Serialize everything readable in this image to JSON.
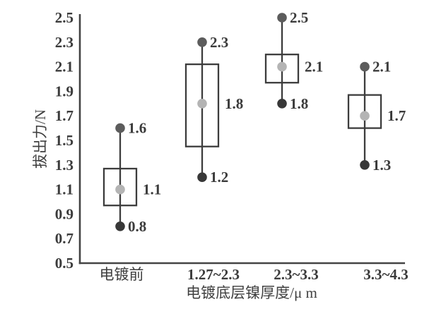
{
  "chart_data": {
    "type": "box",
    "title": "",
    "xlabel": "电镀底层镍厚度/μ m",
    "ylabel": "拔出力/N",
    "ylim": [
      0.5,
      2.5
    ],
    "ytick_step": 0.2,
    "ytick_labels": [
      "2.5",
      "2.3",
      "2.1",
      "1.9",
      "1.7",
      "1.5",
      "1.3",
      "1.1",
      "0.9",
      "0.7",
      "0.5"
    ],
    "categories": [
      "电镀前",
      "1.27~2.3",
      "2.3~3.3",
      "3.3~4.3"
    ],
    "grid": false,
    "legend": "none",
    "series": [
      {
        "category": "电镀前",
        "max": 1.6,
        "mean": 1.1,
        "min": 0.8,
        "box_top": 1.27,
        "box_bottom": 0.97,
        "max_label": "1.6",
        "mean_label": "1.1",
        "min_label": "0.8"
      },
      {
        "category": "1.27~2.3",
        "max": 2.3,
        "mean": 1.8,
        "min": 1.2,
        "box_top": 2.12,
        "box_bottom": 1.45,
        "max_label": "2.3",
        "mean_label": "1.8",
        "min_label": "1.2"
      },
      {
        "category": "2.3~3.3",
        "max": 2.5,
        "mean": 2.1,
        "min": 1.8,
        "box_top": 2.2,
        "box_bottom": 1.97,
        "max_label": "2.5",
        "mean_label": "2.1",
        "min_label": "1.8"
      },
      {
        "category": "3.3~4.3",
        "max": 2.1,
        "mean": 1.7,
        "min": 1.3,
        "box_top": 1.87,
        "box_bottom": 1.6,
        "max_label": "2.1",
        "mean_label": "1.7",
        "min_label": "1.3"
      }
    ],
    "colors": {
      "max_dot": "#5c5c5c",
      "min_dot": "#383838",
      "mean_dot": "#b4b4b4",
      "whisker": "#3c3c3c",
      "box_stroke": "#3c3c3c",
      "axis": "#444444",
      "text": "#3b3b3b"
    }
  }
}
